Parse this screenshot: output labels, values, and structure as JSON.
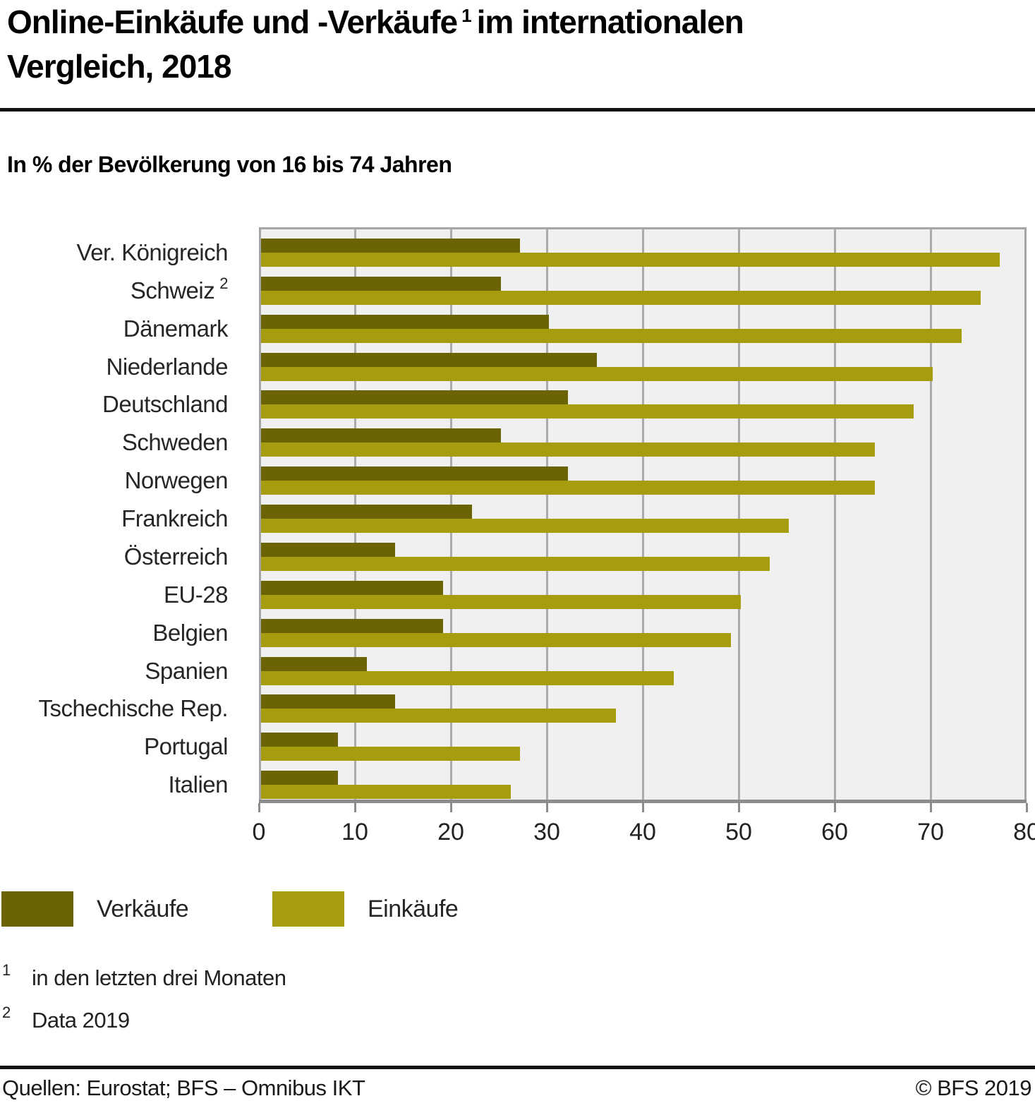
{
  "title": {
    "line1_pre": "Online-Einkäufe und -Verkäufe",
    "sup": "1",
    "line1_post": "im internationalen",
    "line2": "Vergleich, 2018"
  },
  "subtitle": "In % der Bevölkerung von 16 bis 74 Jahren",
  "chart_data": {
    "type": "bar",
    "orientation": "horizontal",
    "unit": "% der Bevölkerung von 16 bis 74 Jahren",
    "xlim": [
      0,
      80
    ],
    "x_ticks": [
      0,
      10,
      20,
      30,
      40,
      50,
      60,
      70,
      80
    ],
    "grid": true,
    "legend_position": "bottom",
    "categories": [
      {
        "name": "Ver. Königreich"
      },
      {
        "name": "Schweiz",
        "sup": "2"
      },
      {
        "name": "Dänemark"
      },
      {
        "name": "Niederlande"
      },
      {
        "name": "Deutschland"
      },
      {
        "name": "Schweden"
      },
      {
        "name": "Norwegen"
      },
      {
        "name": "Frankreich"
      },
      {
        "name": "Österreich"
      },
      {
        "name": "EU-28"
      },
      {
        "name": "Belgien"
      },
      {
        "name": "Spanien"
      },
      {
        "name": "Tschechische Rep."
      },
      {
        "name": "Portugal"
      },
      {
        "name": "Italien"
      }
    ],
    "series": [
      {
        "name": "Verkäufe",
        "color": "#6b6405",
        "values": [
          27,
          25,
          30,
          35,
          32,
          25,
          32,
          22,
          14,
          19,
          19,
          11,
          14,
          8,
          8
        ]
      },
      {
        "name": "Einkäufe",
        "color": "#a69c0d",
        "values": [
          77,
          75,
          73,
          70,
          68,
          64,
          64,
          55,
          53,
          50,
          49,
          43,
          37,
          27,
          26
        ]
      }
    ]
  },
  "legend": [
    {
      "label": "Verkäufe"
    },
    {
      "label": "Einkäufe"
    }
  ],
  "footnotes": [
    {
      "sup": "1",
      "text": "in den letzten drei Monaten"
    },
    {
      "sup": "2",
      "text": "Data 2019"
    }
  ],
  "footer": {
    "source": "Quellen: Eurostat; BFS – Omnibus IKT",
    "copyright": "© BFS 2019"
  },
  "colors": {
    "verkaeufe": "#6b6405",
    "einkaeufe": "#a69c0d",
    "plot_background": "#f0f0f1",
    "gridline": "#ababab",
    "axis": "#8c8c8c",
    "rule": "#111111"
  }
}
